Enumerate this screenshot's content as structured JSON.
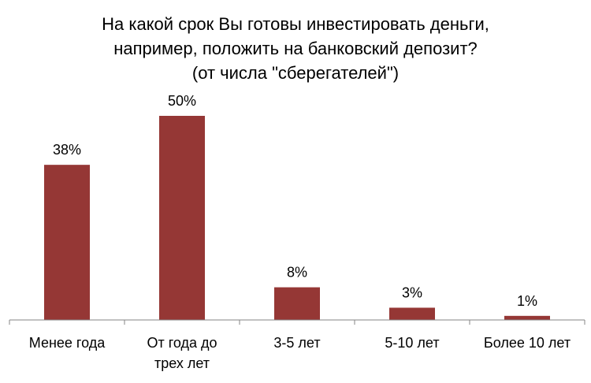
{
  "chart_data": {
    "type": "bar",
    "title_lines": [
      "На какой срок Вы готовы инвестировать деньги,",
      "например, положить на банковский депозит?",
      "(от числа \"сберегателей\")"
    ],
    "categories": [
      [
        "Менее года"
      ],
      [
        "От года до",
        "трех лет"
      ],
      [
        "3-5 лет"
      ],
      [
        "5-10 лет"
      ],
      [
        "Более 10 лет"
      ]
    ],
    "values": [
      38,
      50,
      8,
      3,
      1
    ],
    "data_labels": [
      "38%",
      "50%",
      "8%",
      "3%",
      "1%"
    ],
    "ylim": [
      0,
      50
    ],
    "grid": false,
    "legend": "none",
    "bar_color": "#953735",
    "axis_color": "#868686"
  }
}
